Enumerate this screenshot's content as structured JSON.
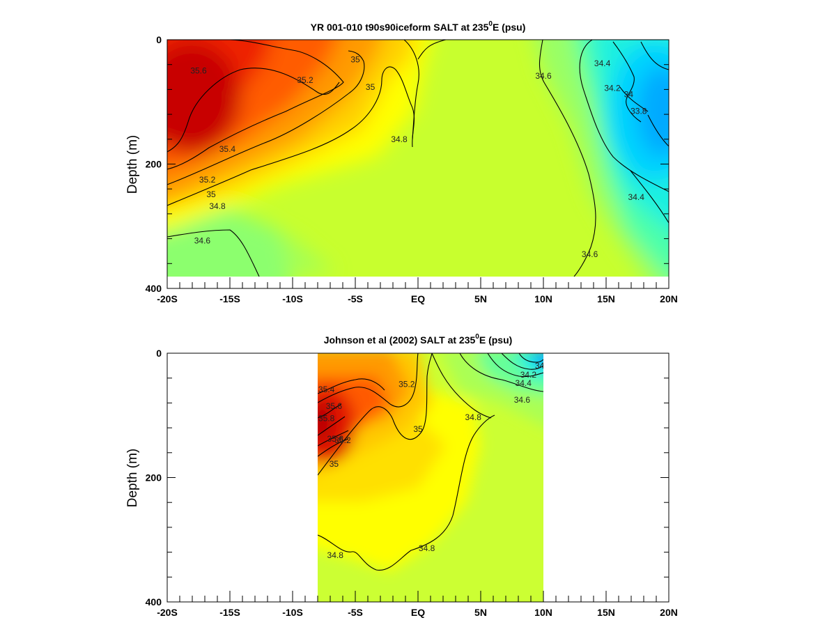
{
  "chart_data": [
    {
      "type": "heatmap",
      "title_main": "YR 001-010 t90s90iceform SALT at 235",
      "title_degree": "0",
      "title_tail": "E (psu)",
      "ylabel": "Depth (m)",
      "xlim": [
        -20,
        20
      ],
      "ylim": [
        400,
        0
      ],
      "x_tick_labels": [
        "-20S",
        "-15S",
        "-10S",
        "-5S",
        "EQ",
        "5N",
        "10N",
        "15N",
        "20N"
      ],
      "y_tick_labels": [
        "0",
        "200",
        "400"
      ],
      "contour_labels": [
        {
          "text": "35.6",
          "x": -17.5,
          "y": 50
        },
        {
          "text": "35.4",
          "x": -15.2,
          "y": 176
        },
        {
          "text": "35.2",
          "x": -9.0,
          "y": 65
        },
        {
          "text": "35.2",
          "x": -16.8,
          "y": 225
        },
        {
          "text": "35",
          "x": -5.0,
          "y": 32
        },
        {
          "text": "35",
          "x": -3.8,
          "y": 76
        },
        {
          "text": "35",
          "x": -16.5,
          "y": 249
        },
        {
          "text": "34.8",
          "x": -16.0,
          "y": 268
        },
        {
          "text": "34.8",
          "x": -1.5,
          "y": 160
        },
        {
          "text": "34.6",
          "x": -17.2,
          "y": 323
        },
        {
          "text": "34.6",
          "x": 10.0,
          "y": 58
        },
        {
          "text": "34.6",
          "x": 13.7,
          "y": 345
        },
        {
          "text": "34.4",
          "x": 14.7,
          "y": 38
        },
        {
          "text": "34.4",
          "x": 17.4,
          "y": 253
        },
        {
          "text": "34.2",
          "x": 15.5,
          "y": 78
        },
        {
          "text": "34",
          "x": 16.8,
          "y": 88
        },
        {
          "text": "33.8",
          "x": 17.6,
          "y": 115
        }
      ]
    },
    {
      "type": "heatmap",
      "title_main": "Johnson et al (2002) SALT at 235",
      "title_degree": "0",
      "title_tail": "E (psu)",
      "ylabel": "Depth (m)",
      "xlim": [
        -20,
        20
      ],
      "ylim": [
        400,
        0
      ],
      "data_x_extent": [
        -8,
        10
      ],
      "x_tick_labels": [
        "-20S",
        "-15S",
        "-10S",
        "-5S",
        "EQ",
        "5N",
        "10N",
        "15N",
        "20N"
      ],
      "y_tick_labels": [
        "0",
        "200",
        "400"
      ],
      "contour_labels": [
        {
          "text": "35.4",
          "x": -7.3,
          "y": 58
        },
        {
          "text": "35.2",
          "x": -0.9,
          "y": 50
        },
        {
          "text": "35.6",
          "x": -6.7,
          "y": 85
        },
        {
          "text": "35.8",
          "x": -7.3,
          "y": 105
        },
        {
          "text": "35.6",
          "x": -6.6,
          "y": 138
        },
        {
          "text": "35.2",
          "x": -6.0,
          "y": 140
        },
        {
          "text": "35",
          "x": -6.7,
          "y": 178
        },
        {
          "text": "35",
          "x": 0.0,
          "y": 122
        },
        {
          "text": "34.8",
          "x": 4.4,
          "y": 103
        },
        {
          "text": "34.8",
          "x": -6.6,
          "y": 325
        },
        {
          "text": "34.8",
          "x": 0.7,
          "y": 314
        },
        {
          "text": "34.6",
          "x": 8.3,
          "y": 75
        },
        {
          "text": "34.4",
          "x": 8.4,
          "y": 48
        },
        {
          "text": "34.2",
          "x": 8.8,
          "y": 35
        },
        {
          "text": "34",
          "x": 9.7,
          "y": 20
        }
      ]
    }
  ],
  "colors": {
    "scale_high": "#c80000",
    "scale_mid": "#ffff00",
    "scale_low": "#00aaff"
  }
}
